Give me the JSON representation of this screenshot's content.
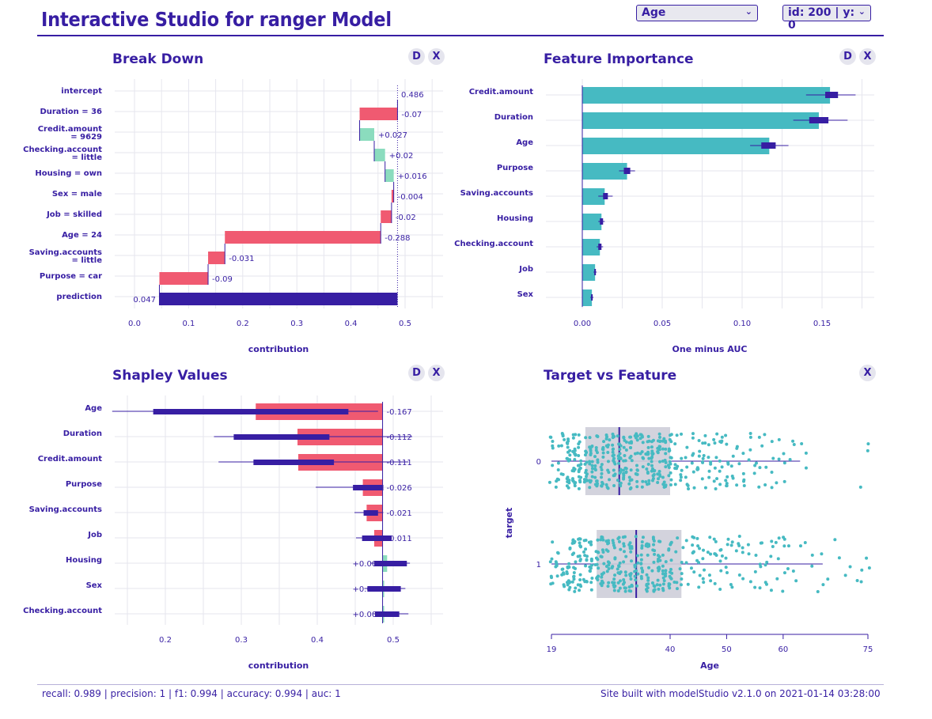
{
  "header": {
    "title": "Interactive Studio for ranger Model",
    "variable_select": "Age",
    "observation_select": "id: 200 | y: 0"
  },
  "colors": {
    "primary": "#371ea3",
    "negative": "#f05a71",
    "positive": "#8bdcbe",
    "importance_bar": "#46bac2",
    "box": "#ceced9",
    "grid": "#e6e6ee"
  },
  "panels": {
    "break_down": {
      "title": "Break Down",
      "btn_d": "D",
      "btn_x": "X"
    },
    "feature_importance": {
      "title": "Feature Importance",
      "btn_d": "D",
      "btn_x": "X"
    },
    "shapley": {
      "title": "Shapley Values",
      "btn_d": "D",
      "btn_x": "X"
    },
    "target_vs_feature": {
      "title": "Target vs Feature",
      "btn_x": "X"
    }
  },
  "chart_data": [
    {
      "id": "break_down",
      "type": "bar",
      "subtype": "waterfall",
      "xlabel": "contribution",
      "xlim": [
        -0.04,
        0.55
      ],
      "xticks": [
        "0.0",
        "0.1",
        "0.2",
        "0.3",
        "0.4",
        "0.5"
      ],
      "rows": [
        {
          "label": [
            "intercept"
          ],
          "start": 0.486,
          "end": 0.486,
          "text": "0.486",
          "kind": "intercept"
        },
        {
          "label": [
            "Duration = 36"
          ],
          "start": 0.486,
          "end": 0.416,
          "text": "-0.07",
          "kind": "neg"
        },
        {
          "label": [
            "Credit.amount",
            "= 9629"
          ],
          "start": 0.416,
          "end": 0.443,
          "text": "+0.027",
          "kind": "pos"
        },
        {
          "label": [
            "Checking.account",
            "= little"
          ],
          "start": 0.443,
          "end": 0.463,
          "text": "+0.02",
          "kind": "pos"
        },
        {
          "label": [
            "Housing = own"
          ],
          "start": 0.463,
          "end": 0.479,
          "text": "+0.016",
          "kind": "pos"
        },
        {
          "label": [
            "Sex = male"
          ],
          "start": 0.479,
          "end": 0.475,
          "text": "-0.004",
          "kind": "neg"
        },
        {
          "label": [
            "Job = skilled"
          ],
          "start": 0.475,
          "end": 0.455,
          "text": "-0.02",
          "kind": "neg"
        },
        {
          "label": [
            "Age = 24"
          ],
          "start": 0.455,
          "end": 0.167,
          "text": "-0.288",
          "kind": "neg"
        },
        {
          "label": [
            "Saving.accounts",
            "= little"
          ],
          "start": 0.167,
          "end": 0.136,
          "text": "-0.031",
          "kind": "neg"
        },
        {
          "label": [
            "Purpose = car"
          ],
          "start": 0.136,
          "end": 0.046,
          "text": "-0.09",
          "kind": "neg"
        },
        {
          "label": [
            "prediction"
          ],
          "start": 0.046,
          "end": 0.486,
          "text": "0.047",
          "kind": "prediction"
        }
      ]
    },
    {
      "id": "feature_importance",
      "type": "bar",
      "xlabel": "One minus AUC",
      "xlim": [
        -0.02,
        0.18
      ],
      "xticks": [
        "0.00",
        "0.05",
        "0.10",
        "0.15"
      ],
      "tick_values": [
        0,
        0.05,
        0.1,
        0.15
      ],
      "rows": [
        {
          "label": "Credit.amount",
          "value": 0.155,
          "box": [
            0.152,
            0.16
          ],
          "whisker": [
            0.14,
            0.171
          ]
        },
        {
          "label": "Duration",
          "value": 0.148,
          "box": [
            0.142,
            0.154
          ],
          "whisker": [
            0.132,
            0.166
          ]
        },
        {
          "label": "Age",
          "value": 0.117,
          "box": [
            0.112,
            0.121
          ],
          "whisker": [
            0.105,
            0.129
          ]
        },
        {
          "label": "Purpose",
          "value": 0.028,
          "box": [
            0.026,
            0.03
          ],
          "whisker": [
            0.023,
            0.033
          ]
        },
        {
          "label": "Saving.accounts",
          "value": 0.014,
          "box": [
            0.013,
            0.016
          ],
          "whisker": [
            0.01,
            0.019
          ]
        },
        {
          "label": "Housing",
          "value": 0.012,
          "box": [
            0.011,
            0.013
          ],
          "whisker": [
            0.01,
            0.014
          ]
        },
        {
          "label": "Checking.account",
          "value": 0.011,
          "box": [
            0.01,
            0.012
          ],
          "whisker": [
            0.009,
            0.013
          ]
        },
        {
          "label": "Job",
          "value": 0.008,
          "box": [
            0.0075,
            0.0085
          ],
          "whisker": [
            0.007,
            0.009
          ]
        },
        {
          "label": "Sex",
          "value": 0.006,
          "box": [
            0.0055,
            0.0065
          ],
          "whisker": [
            0.005,
            0.007
          ]
        }
      ]
    },
    {
      "id": "shapley",
      "type": "bar",
      "subtype": "shapley",
      "xlabel": "contribution",
      "base": 0.486,
      "xlim": [
        0.14,
        0.55
      ],
      "xticks": [
        "0.2",
        "0.3",
        "0.4",
        "0.5"
      ],
      "tick_values": [
        0.2,
        0.3,
        0.4,
        0.5
      ],
      "rows": [
        {
          "label": "Age",
          "value": -0.167,
          "text": "-0.167",
          "box": [
            0.184,
            0.441
          ],
          "whisker": [
            0.13,
            0.48
          ]
        },
        {
          "label": "Duration",
          "value": -0.112,
          "text": "-0.112",
          "box": [
            0.29,
            0.416
          ],
          "whisker": [
            0.264,
            0.525
          ]
        },
        {
          "label": "Credit.amount",
          "value": -0.111,
          "text": "-0.111",
          "box": [
            0.316,
            0.422
          ],
          "whisker": [
            0.27,
            0.52
          ]
        },
        {
          "label": "Purpose",
          "value": -0.026,
          "text": "-0.026",
          "box": [
            0.447,
            0.487
          ],
          "whisker": [
            0.398,
            0.487
          ]
        },
        {
          "label": "Saving.accounts",
          "value": -0.021,
          "text": "-0.021",
          "box": [
            0.461,
            0.48
          ],
          "whisker": [
            0.449,
            0.487
          ]
        },
        {
          "label": "Job",
          "value": -0.011,
          "text": "-0.011",
          "box": [
            0.459,
            0.498
          ],
          "whisker": [
            0.451,
            0.498
          ]
        },
        {
          "label": "Housing",
          "value": 0.006,
          "text": "+0.006",
          "box": [
            0.475,
            0.518
          ],
          "whisker": [
            0.47,
            0.522
          ]
        },
        {
          "label": "Sex",
          "value": 0.001,
          "text": "+0.001",
          "box": [
            0.466,
            0.51
          ],
          "whisker": [
            0.462,
            0.516
          ]
        },
        {
          "label": "Checking.account",
          "value": 0.001,
          "text": "+0.001",
          "box": [
            0.476,
            0.508
          ],
          "whisker": [
            0.473,
            0.52
          ]
        }
      ]
    },
    {
      "id": "target_vs_feature",
      "type": "scatter",
      "subtype": "boxplot-strip",
      "xlabel": "Age",
      "ylabel": "target",
      "xlim": [
        19,
        75
      ],
      "xticks": [
        "19",
        "40",
        "50",
        "60",
        "75"
      ],
      "tick_values": [
        19,
        40,
        50,
        60,
        75
      ],
      "groups": [
        {
          "label": "0",
          "q1": 25,
          "median": 31,
          "q3": 40,
          "whisker": [
            19,
            63
          ],
          "outliers": [
            74,
            75
          ]
        },
        {
          "label": "1",
          "q1": 27,
          "median": 34,
          "q3": 42,
          "whisker": [
            19,
            67
          ],
          "outliers": [
            68,
            70,
            74,
            75
          ]
        }
      ]
    }
  ],
  "footer": {
    "metrics": "recall: 0.989 | precision: 1 | f1: 0.994 | accuracy: 0.994 | auc: 1",
    "credit": "Site built with modelStudio v2.1.0 on 2021-01-14 03:28:00"
  }
}
